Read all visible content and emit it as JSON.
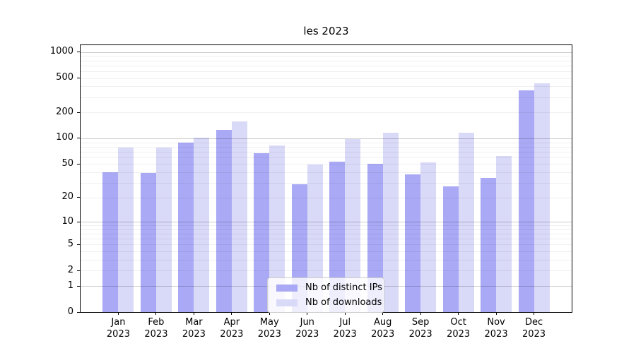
{
  "chart_data": {
    "type": "bar",
    "title": "les 2023",
    "x_year": "2023",
    "categories": [
      "Jan",
      "Feb",
      "Mar",
      "Apr",
      "May",
      "Jun",
      "Jul",
      "Aug",
      "Sep",
      "Oct",
      "Nov",
      "Dec"
    ],
    "series": [
      {
        "name": "Nb of distinct IPs",
        "color": "#a9a9f5",
        "values": [
          40,
          39,
          90,
          125,
          67,
          29,
          53,
          50,
          38,
          27,
          34,
          360
        ]
      },
      {
        "name": "Nb of downloads",
        "color": "#d9d9f8",
        "values": [
          78,
          78,
          101,
          157,
          82,
          49,
          98,
          117,
          52,
          116,
          62,
          435
        ]
      }
    ],
    "xlabel": "",
    "ylabel": "",
    "y_scale": "log1p",
    "ylim": [
      0,
      1200
    ],
    "y_ticks": [
      0,
      1,
      2,
      5,
      10,
      20,
      50,
      100,
      200,
      500,
      1000
    ],
    "grid": true,
    "grid_major_values": [
      1,
      10,
      100,
      1000
    ],
    "legend_position": "lower center"
  }
}
